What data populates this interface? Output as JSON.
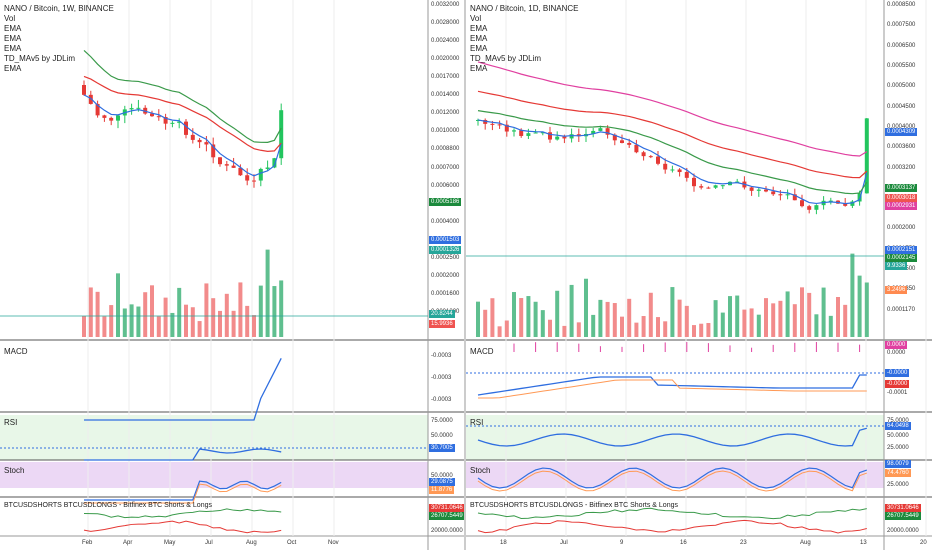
{
  "left": {
    "title": "NANO / Bitcoin, 1W, BINANCE",
    "legend": [
      "Vol",
      "EMA",
      "EMA",
      "EMA",
      "TD_MAv5 by JDLim",
      "EMA"
    ],
    "yticks": [
      "0.0032000",
      "0.0028000",
      "0.0024000",
      "0.0020000",
      "0.0017000",
      "0.0014000",
      "0.0012000",
      "0.0010000",
      "0.0008800",
      "0.0007000",
      "0.0006000",
      "0.0005000",
      "0.0004000",
      "0.0003000",
      "0.0002500",
      "0.0002000",
      "0.0001600",
      "0.0001300"
    ],
    "tags": [
      {
        "text": "0.0005186",
        "color": "#1b8a3c"
      },
      {
        "text": "0.0001503",
        "color": "#2f6ee0"
      },
      {
        "text": "0.0001326",
        "color": "#26a69a"
      },
      {
        "text": "20.8244",
        "color": "#26a69a"
      },
      {
        "text": "15.9936",
        "color": "#ef5350"
      }
    ],
    "xticks": [
      "Feb",
      "Apr",
      "May",
      "Jul",
      "Aug",
      "Oct",
      "Nov"
    ],
    "macd": {
      "label": "MACD",
      "ticks": [
        "-0.0003",
        "-0.0003",
        "-0.0003"
      ]
    },
    "rsi": {
      "label": "RSI",
      "ticks": [
        "75.0000",
        "50.0000",
        "25.0000"
      ],
      "tag": "30.7005"
    },
    "stoch": {
      "label": "Stoch",
      "ticks": [
        "50.0000"
      ],
      "tags": [
        "29.0875",
        "11.8776"
      ]
    },
    "shorts": {
      "label": "BTCUSDSHORTS BTCUSDLONGS - Bitfinex BTC Shorts & Longs",
      "tags": [
        "30731.0646",
        "26707.5449"
      ],
      "ticks": [
        "20000.0000"
      ]
    }
  },
  "right": {
    "title": "NANO / Bitcoin, 1D, BINANCE",
    "legend": [
      "Vol",
      "EMA",
      "EMA",
      "EMA",
      "TD_MAv5 by JDLim",
      "EMA"
    ],
    "yticks": [
      "0.0008500",
      "0.0007500",
      "0.0006500",
      "0.0005500",
      "0.0005000",
      "0.0004500",
      "0.0004000",
      "0.0003600",
      "0.0003200",
      "0.0002800",
      "0.0002400",
      "0.0002000",
      "0.0001750",
      "0.0001500",
      "0.0001350",
      "0.0001170"
    ],
    "tags": [
      {
        "text": "0.0004309",
        "color": "#2f6ee0"
      },
      {
        "text": "0.0003137",
        "color": "#1b8a3c"
      },
      {
        "text": "0.0003018",
        "color": "#ef5350"
      },
      {
        "text": "0.0002931",
        "color": "#e040a0"
      },
      {
        "text": "0.0002151",
        "color": "#2f6ee0"
      },
      {
        "text": "0.0002145",
        "color": "#1b8a3c"
      },
      {
        "text": "9.9336",
        "color": "#26a69a"
      },
      {
        "text": "3.2496",
        "color": "#ff8a50"
      }
    ],
    "xticks": [
      "18",
      "Jul",
      "9",
      "16",
      "23",
      "Aug",
      "13",
      "20"
    ],
    "macd": {
      "label": "MACD",
      "ticks": [
        "0.0000",
        "-0.0001"
      ],
      "tags": [
        "0.0000",
        "-0.0000",
        "-0.0000"
      ]
    },
    "rsi": {
      "label": "RSI",
      "ticks": [
        "75.0000",
        "50.0000",
        "25.0000"
      ],
      "tag": "64.0498"
    },
    "stoch": {
      "label": "Stoch",
      "ticks": [
        "50.0000",
        "25.0000"
      ],
      "tags": [
        "98.0079",
        "74.4760"
      ]
    },
    "shorts": {
      "label": "BTCUSDSHORTS BTCUSDLONGS - Bitfinex BTC Shorts & Longs",
      "tags": [
        "30731.0646",
        "26707.5449"
      ],
      "ticks": [
        "20000.0000"
      ]
    }
  },
  "colors": {
    "up": "#26a69a",
    "down": "#ef5350",
    "upBright": "#22c55e",
    "blue": "#2f6ee0",
    "green": "#3a9a4a",
    "red": "#e53935",
    "pink": "#e040a0",
    "orange": "#ff9955",
    "volUp": "#5fbf8f",
    "volDown": "#f28b8b",
    "rsiBg": "#e8f7e8",
    "stochBg": "#ecd8f5"
  }
}
